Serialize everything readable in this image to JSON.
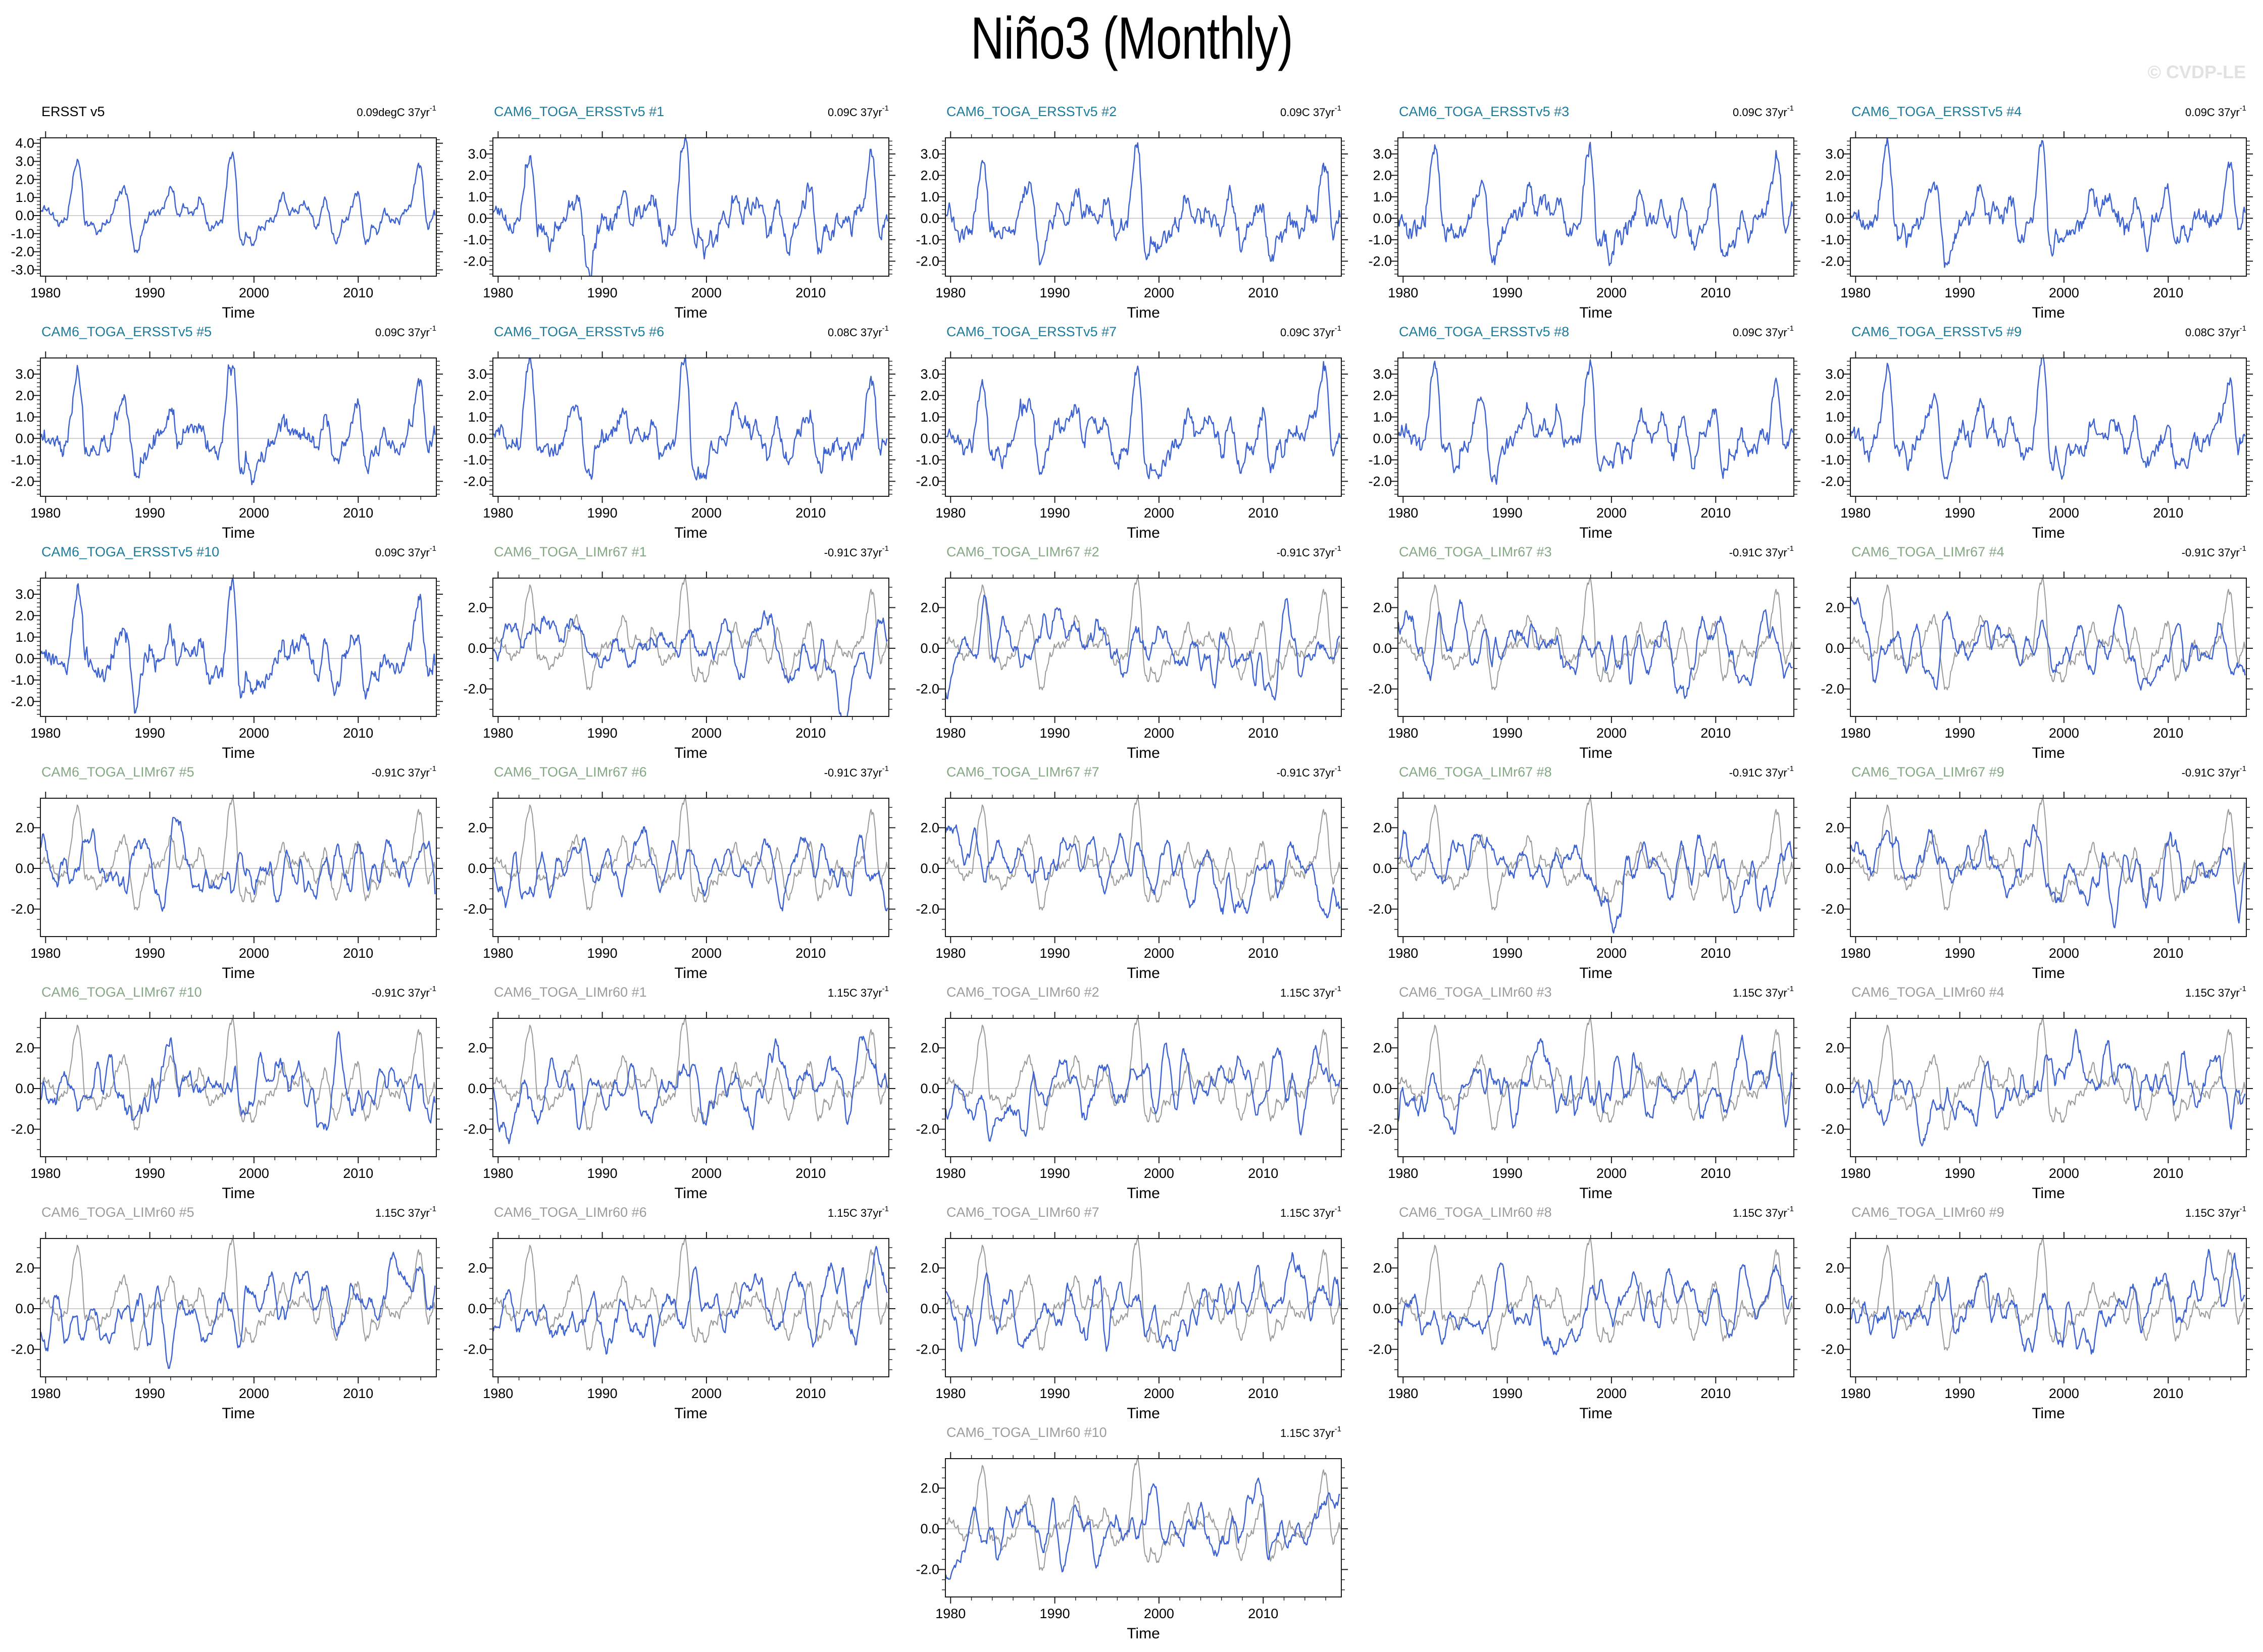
{
  "page": {
    "title": "Niño3 (Monthly)",
    "watermark": "© CVDP-LE"
  },
  "colors": {
    "blue_line": "#3D63D2",
    "gray_line": "#9A9A9A",
    "zero_line": "#C4C4C4",
    "frame": "#1A1A1A",
    "title_black": "#000000",
    "title_teal": "#1B7C9E",
    "title_green": "#83A883",
    "title_gray": "#9C9C9C",
    "watermark_gray": "#E2E2E2"
  },
  "chart_data": {
    "type": "line",
    "title": "Niño3 (Monthly)",
    "xlabel": "Time",
    "ylabel": "",
    "x_ticks": [
      1980,
      1990,
      2000,
      2010
    ],
    "x_minor_step_years": 2,
    "x_range_years": [
      1979.5,
      2017.5
    ],
    "grid": false,
    "legend": "none",
    "zero_reference_line": 0.0,
    "sampling_note": "observed Niño3 SST anomaly (degC), quarterly estimates read from plot",
    "observed_nino3_quarterly": {
      "x_start": 1979.0,
      "x_step": 0.25,
      "values": [
        0.3,
        0.0,
        0.2,
        0.4,
        0.4,
        0.3,
        0.1,
        0.0,
        -0.3,
        -0.5,
        -0.4,
        -0.2,
        -0.3,
        0.5,
        1.5,
        2.5,
        3.0,
        2.9,
        1.5,
        -0.5,
        -0.4,
        -0.6,
        -0.3,
        -0.8,
        -1.0,
        -0.8,
        -0.5,
        -0.4,
        -0.4,
        -0.2,
        0.3,
        0.8,
        1.1,
        1.3,
        1.6,
        1.3,
        0.5,
        -1.0,
        -1.8,
        -2.1,
        -1.7,
        -0.9,
        -0.4,
        -0.3,
        0.1,
        0.2,
        0.1,
        0.2,
        0.2,
        0.4,
        0.7,
        1.2,
        1.6,
        1.4,
        0.4,
        -0.1,
        0.2,
        0.6,
        0.4,
        0.2,
        0.1,
        0.2,
        0.4,
        1.0,
        0.8,
        0.2,
        -0.5,
        -0.8,
        -0.7,
        -0.5,
        -0.4,
        -0.4,
        -0.2,
        1.0,
        2.6,
        3.3,
        3.4,
        2.4,
        -0.6,
        -1.5,
        -1.6,
        -1.0,
        -1.2,
        -1.5,
        -1.7,
        -1.0,
        -0.6,
        -0.7,
        -0.7,
        -0.3,
        -0.2,
        -0.3,
        -0.2,
        0.3,
        0.8,
        1.3,
        0.9,
        0.2,
        0.1,
        0.4,
        0.2,
        0.2,
        0.6,
        0.7,
        0.5,
        0.3,
        0.1,
        -0.4,
        -0.8,
        -0.3,
        0.3,
        1.0,
        0.7,
        -0.1,
        -0.9,
        -1.4,
        -1.5,
        -0.9,
        -0.3,
        -0.3,
        -0.2,
        0.3,
        0.7,
        1.2,
        1.3,
        0.5,
        -1.1,
        -1.5,
        -1.4,
        -0.7,
        -0.5,
        -1.0,
        -0.8,
        -0.2,
        0.3,
        0.1,
        -0.2,
        -0.3,
        -0.3,
        -0.2,
        -0.4,
        0.2,
        0.2,
        0.4,
        0.5,
        1.1,
        2.1,
        2.8,
        2.8,
        1.6,
        -0.3,
        -0.7,
        -0.3,
        0.2,
        -0.2,
        -0.6
      ]
    },
    "axes_presets": {
      "obs": {
        "ylim": [
          -3.35,
          4.3
        ],
        "y_major_ticks": [
          4.0,
          3.0,
          2.0,
          1.0,
          0.0,
          -1.0,
          -2.0,
          -3.0
        ],
        "y_minor_step": 0.2
      },
      "member": {
        "ylim": [
          -2.7,
          3.75
        ],
        "y_major_ticks": [
          3.0,
          2.0,
          1.0,
          0.0,
          -1.0,
          -2.0
        ],
        "y_minor_step": 0.2
      },
      "lim": {
        "ylim": [
          -3.35,
          3.45
        ],
        "y_major_ticks": [
          2.0,
          0.0,
          -2.0
        ],
        "y_minor_step": 0.5
      }
    },
    "panels": [
      {
        "name": "ERSST v5",
        "title_color": "title_black",
        "trend_main": "0.09degC 37yr",
        "trend_sup": "-1",
        "axis": "obs",
        "series": "obs",
        "overlay_obs_gray": false,
        "seed": 1,
        "trend_c_per_37yr": 0.09
      },
      {
        "name": "CAM6_TOGA_ERSSTv5 #1",
        "title_color": "title_teal",
        "trend_main": "0.09C 37yr",
        "trend_sup": "-1",
        "axis": "member",
        "series": "obs_plus_noise",
        "overlay_obs_gray": false,
        "seed": 11,
        "trend_c_per_37yr": 0.09
      },
      {
        "name": "CAM6_TOGA_ERSSTv5 #2",
        "title_color": "title_teal",
        "trend_main": "0.09C 37yr",
        "trend_sup": "-1",
        "axis": "member",
        "series": "obs_plus_noise",
        "overlay_obs_gray": false,
        "seed": 12,
        "trend_c_per_37yr": 0.09
      },
      {
        "name": "CAM6_TOGA_ERSSTv5 #3",
        "title_color": "title_teal",
        "trend_main": "0.09C 37yr",
        "trend_sup": "-1",
        "axis": "member",
        "series": "obs_plus_noise",
        "overlay_obs_gray": false,
        "seed": 13,
        "trend_c_per_37yr": 0.09
      },
      {
        "name": "CAM6_TOGA_ERSSTv5 #4",
        "title_color": "title_teal",
        "trend_main": "0.09C 37yr",
        "trend_sup": "-1",
        "axis": "member",
        "series": "obs_plus_noise",
        "overlay_obs_gray": false,
        "seed": 14,
        "trend_c_per_37yr": 0.09
      },
      {
        "name": "CAM6_TOGA_ERSSTv5 #5",
        "title_color": "title_teal",
        "trend_main": "0.09C 37yr",
        "trend_sup": "-1",
        "axis": "member",
        "series": "obs_plus_noise",
        "overlay_obs_gray": false,
        "seed": 15,
        "trend_c_per_37yr": 0.09
      },
      {
        "name": "CAM6_TOGA_ERSSTv5 #6",
        "title_color": "title_teal",
        "trend_main": "0.08C 37yr",
        "trend_sup": "-1",
        "axis": "member",
        "series": "obs_plus_noise",
        "overlay_obs_gray": false,
        "seed": 16,
        "trend_c_per_37yr": 0.08
      },
      {
        "name": "CAM6_TOGA_ERSSTv5 #7",
        "title_color": "title_teal",
        "trend_main": "0.09C 37yr",
        "trend_sup": "-1",
        "axis": "member",
        "series": "obs_plus_noise",
        "overlay_obs_gray": false,
        "seed": 17,
        "trend_c_per_37yr": 0.09
      },
      {
        "name": "CAM6_TOGA_ERSSTv5 #8",
        "title_color": "title_teal",
        "trend_main": "0.09C 37yr",
        "trend_sup": "-1",
        "axis": "member",
        "series": "obs_plus_noise",
        "overlay_obs_gray": false,
        "seed": 18,
        "trend_c_per_37yr": 0.09
      },
      {
        "name": "CAM6_TOGA_ERSSTv5 #9",
        "title_color": "title_teal",
        "trend_main": "0.08C 37yr",
        "trend_sup": "-1",
        "axis": "member",
        "series": "obs_plus_noise",
        "overlay_obs_gray": false,
        "seed": 19,
        "trend_c_per_37yr": 0.08
      },
      {
        "name": "CAM6_TOGA_ERSSTv5 #10",
        "title_color": "title_teal",
        "trend_main": "0.09C 37yr",
        "trend_sup": "-1",
        "axis": "member",
        "series": "obs_plus_noise",
        "overlay_obs_gray": false,
        "seed": 20,
        "trend_c_per_37yr": 0.09
      },
      {
        "name": "CAM6_TOGA_LIMr67 #1",
        "title_color": "title_green",
        "trend_main": "-0.91C 37yr",
        "trend_sup": "-1",
        "axis": "lim",
        "series": "model",
        "overlay_obs_gray": true,
        "seed": 31,
        "trend_c_per_37yr": -0.91
      },
      {
        "name": "CAM6_TOGA_LIMr67 #2",
        "title_color": "title_green",
        "trend_main": "-0.91C 37yr",
        "trend_sup": "-1",
        "axis": "lim",
        "series": "model",
        "overlay_obs_gray": true,
        "seed": 32,
        "trend_c_per_37yr": -0.91
      },
      {
        "name": "CAM6_TOGA_LIMr67 #3",
        "title_color": "title_green",
        "trend_main": "-0.91C 37yr",
        "trend_sup": "-1",
        "axis": "lim",
        "series": "model",
        "overlay_obs_gray": true,
        "seed": 33,
        "trend_c_per_37yr": -0.91
      },
      {
        "name": "CAM6_TOGA_LIMr67 #4",
        "title_color": "title_green",
        "trend_main": "-0.91C 37yr",
        "trend_sup": "-1",
        "axis": "lim",
        "series": "model",
        "overlay_obs_gray": true,
        "seed": 34,
        "trend_c_per_37yr": -0.91
      },
      {
        "name": "CAM6_TOGA_LIMr67 #5",
        "title_color": "title_green",
        "trend_main": "-0.91C 37yr",
        "trend_sup": "-1",
        "axis": "lim",
        "series": "model",
        "overlay_obs_gray": true,
        "seed": 35,
        "trend_c_per_37yr": -0.91
      },
      {
        "name": "CAM6_TOGA_LIMr67 #6",
        "title_color": "title_green",
        "trend_main": "-0.91C 37yr",
        "trend_sup": "-1",
        "axis": "lim",
        "series": "model",
        "overlay_obs_gray": true,
        "seed": 36,
        "trend_c_per_37yr": -0.91
      },
      {
        "name": "CAM6_TOGA_LIMr67 #7",
        "title_color": "title_green",
        "trend_main": "-0.91C 37yr",
        "trend_sup": "-1",
        "axis": "lim",
        "series": "model",
        "overlay_obs_gray": true,
        "seed": 37,
        "trend_c_per_37yr": -0.91
      },
      {
        "name": "CAM6_TOGA_LIMr67 #8",
        "title_color": "title_green",
        "trend_main": "-0.91C 37yr",
        "trend_sup": "-1",
        "axis": "lim",
        "series": "model",
        "overlay_obs_gray": true,
        "seed": 38,
        "trend_c_per_37yr": -0.91
      },
      {
        "name": "CAM6_TOGA_LIMr67 #9",
        "title_color": "title_green",
        "trend_main": "-0.91C 37yr",
        "trend_sup": "-1",
        "axis": "lim",
        "series": "model",
        "overlay_obs_gray": true,
        "seed": 39,
        "trend_c_per_37yr": -0.91
      },
      {
        "name": "CAM6_TOGA_LIMr67 #10",
        "title_color": "title_green",
        "trend_main": "-0.91C 37yr",
        "trend_sup": "-1",
        "axis": "lim",
        "series": "model",
        "overlay_obs_gray": true,
        "seed": 40,
        "trend_c_per_37yr": -0.91
      },
      {
        "name": "CAM6_TOGA_LIMr60 #1",
        "title_color": "title_gray",
        "trend_main": "1.15C 37yr",
        "trend_sup": "-1",
        "axis": "lim",
        "series": "model",
        "overlay_obs_gray": true,
        "seed": 51,
        "trend_c_per_37yr": 1.15
      },
      {
        "name": "CAM6_TOGA_LIMr60 #2",
        "title_color": "title_gray",
        "trend_main": "1.15C 37yr",
        "trend_sup": "-1",
        "axis": "lim",
        "series": "model",
        "overlay_obs_gray": true,
        "seed": 52,
        "trend_c_per_37yr": 1.15
      },
      {
        "name": "CAM6_TOGA_LIMr60 #3",
        "title_color": "title_gray",
        "trend_main": "1.15C 37yr",
        "trend_sup": "-1",
        "axis": "lim",
        "series": "model",
        "overlay_obs_gray": true,
        "seed": 53,
        "trend_c_per_37yr": 1.15
      },
      {
        "name": "CAM6_TOGA_LIMr60 #4",
        "title_color": "title_gray",
        "trend_main": "1.15C 37yr",
        "trend_sup": "-1",
        "axis": "lim",
        "series": "model",
        "overlay_obs_gray": true,
        "seed": 54,
        "trend_c_per_37yr": 1.15
      },
      {
        "name": "CAM6_TOGA_LIMr60 #5",
        "title_color": "title_gray",
        "trend_main": "1.15C 37yr",
        "trend_sup": "-1",
        "axis": "lim",
        "series": "model",
        "overlay_obs_gray": true,
        "seed": 55,
        "trend_c_per_37yr": 1.15
      },
      {
        "name": "CAM6_TOGA_LIMr60 #6",
        "title_color": "title_gray",
        "trend_main": "1.15C 37yr",
        "trend_sup": "-1",
        "axis": "lim",
        "series": "model",
        "overlay_obs_gray": true,
        "seed": 56,
        "trend_c_per_37yr": 1.15
      },
      {
        "name": "CAM6_TOGA_LIMr60 #7",
        "title_color": "title_gray",
        "trend_main": "1.15C 37yr",
        "trend_sup": "-1",
        "axis": "lim",
        "series": "model",
        "overlay_obs_gray": true,
        "seed": 57,
        "trend_c_per_37yr": 1.15
      },
      {
        "name": "CAM6_TOGA_LIMr60 #8",
        "title_color": "title_gray",
        "trend_main": "1.15C 37yr",
        "trend_sup": "-1",
        "axis": "lim",
        "series": "model",
        "overlay_obs_gray": true,
        "seed": 58,
        "trend_c_per_37yr": 1.15
      },
      {
        "name": "CAM6_TOGA_LIMr60 #9",
        "title_color": "title_gray",
        "trend_main": "1.15C 37yr",
        "trend_sup": "-1",
        "axis": "lim",
        "series": "model",
        "overlay_obs_gray": true,
        "seed": 59,
        "trend_c_per_37yr": 1.15
      },
      {
        "name": "CAM6_TOGA_LIMr60 #10",
        "title_color": "title_gray",
        "trend_main": "1.15C 37yr",
        "trend_sup": "-1",
        "axis": "lim",
        "series": "model",
        "overlay_obs_gray": true,
        "seed": 60,
        "trend_c_per_37yr": 1.15,
        "grid_column": 3
      }
    ]
  }
}
